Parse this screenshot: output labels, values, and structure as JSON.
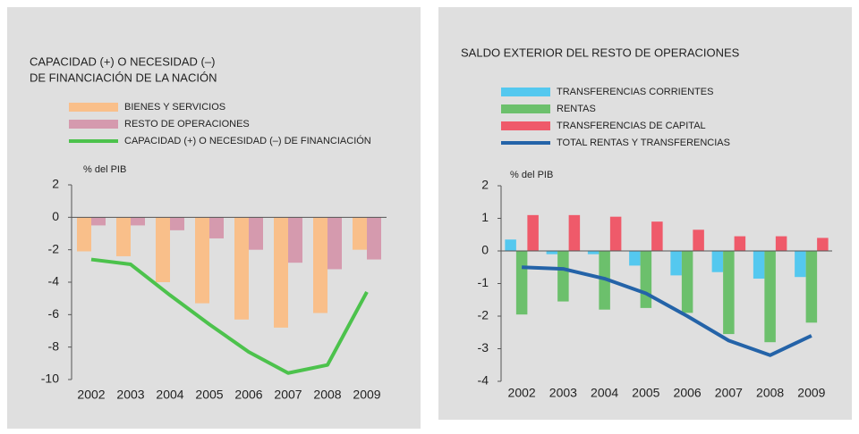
{
  "chart_data": [
    {
      "type": "bar",
      "title": [
        "CAPACIDAD (+) O NECESIDAD (–)",
        "DE FINANCIACIÓN DE LA NACIÓN"
      ],
      "y_label": "% del PIB",
      "categories": [
        "2002",
        "2003",
        "2004",
        "2005",
        "2006",
        "2007",
        "2008",
        "2009"
      ],
      "series": [
        {
          "name": "BIENES Y SERVICIOS",
          "type": "bar",
          "color": "#f9bf8a",
          "values": [
            -2.1,
            -2.4,
            -4.0,
            -5.3,
            -6.3,
            -6.8,
            -5.9,
            -2.0
          ]
        },
        {
          "name": "RESTO DE OPERACIONES",
          "type": "bar",
          "color": "#d59aae",
          "values": [
            -0.5,
            -0.5,
            -0.8,
            -1.3,
            -2.0,
            -2.8,
            -3.2,
            -2.6
          ]
        },
        {
          "name": "CAPACIDAD (+) O NECESIDAD (–) DE FINANCIACIÓN",
          "type": "line",
          "color": "#4cc24c",
          "values": [
            -2.6,
            -2.9,
            -4.8,
            -6.6,
            -8.3,
            -9.6,
            -9.1,
            -4.6
          ]
        }
      ],
      "ylim": [
        -10,
        2
      ],
      "yticks": [
        2,
        0,
        -2,
        -4,
        -6,
        -8,
        -10
      ]
    },
    {
      "type": "bar",
      "title": [
        "SALDO EXTERIOR DEL RESTO DE OPERACIONES"
      ],
      "y_label": "% del PIB",
      "categories": [
        "2002",
        "2003",
        "2004",
        "2005",
        "2006",
        "2007",
        "2008",
        "2009"
      ],
      "series": [
        {
          "name": "TRANSFERENCIAS CORRIENTES",
          "type": "bar",
          "color": "#54c8ef",
          "values": [
            0.35,
            -0.1,
            -0.1,
            -0.45,
            -0.75,
            -0.65,
            -0.85,
            -0.8
          ]
        },
        {
          "name": "RENTAS",
          "type": "bar",
          "color": "#6cc06c",
          "values": [
            -1.95,
            -1.55,
            -1.8,
            -1.75,
            -1.9,
            -2.55,
            -2.8,
            -2.2
          ]
        },
        {
          "name": "TRANSFERENCIAS DE CAPITAL",
          "type": "bar",
          "color": "#ef5a6a",
          "values": [
            1.1,
            1.1,
            1.05,
            0.9,
            0.65,
            0.45,
            0.45,
            0.4
          ]
        },
        {
          "name": "TOTAL RENTAS Y TRANSFERENCIAS",
          "type": "line",
          "color": "#2463a8",
          "values": [
            -0.5,
            -0.55,
            -0.85,
            -1.3,
            -2.0,
            -2.75,
            -3.2,
            -2.6
          ]
        }
      ],
      "ylim": [
        -4,
        2
      ],
      "yticks": [
        2,
        1,
        0,
        -1,
        -2,
        -3,
        -4
      ]
    }
  ]
}
